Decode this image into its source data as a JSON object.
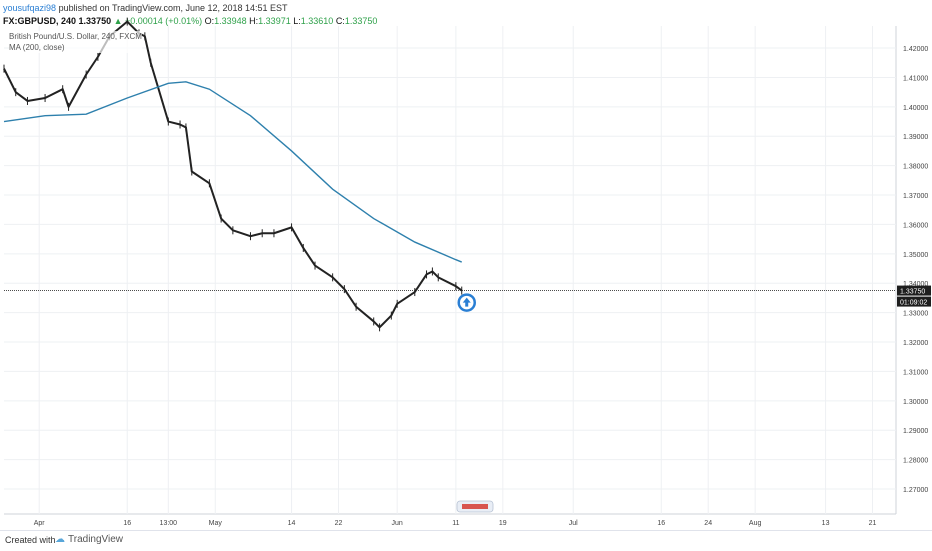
{
  "header": {
    "author": "yousufqazi98",
    "published_text": "published on TradingView.com, June 12, 2018 14:51 EST",
    "symbol": "FX:GBPUSD, 240",
    "last": "1.33750",
    "change": "▲ +0.00014 (+0.01%)",
    "o_label": "O:",
    "o_val": "1.33948",
    "h_label": "H:",
    "h_val": "1.33971",
    "l_label": "L:",
    "l_val": "1.33610",
    "c_label": "C:",
    "c_val": "1.33750"
  },
  "legend": {
    "instrument": "British Pound/U.S. Dollar, 240, FXCM",
    "ma": "MA (200, close)"
  },
  "price_tag": {
    "price": "1.33750",
    "countdown": "01:09:02"
  },
  "footer": {
    "created": "Created with",
    "brand": "TradingView"
  },
  "colors": {
    "ma_line": "#2e80ad",
    "candle": "#222222",
    "grid": "#eef0f3",
    "price_line": "#333333",
    "arrow": "#2a7fd4"
  },
  "chart_data": {
    "type": "line",
    "title": "British Pound/U.S. Dollar, 240, FXCM",
    "xlabel": "",
    "ylabel": "",
    "ylim": [
      1.2615,
      1.4275
    ],
    "y_ticks": [
      "1.42000",
      "1.41000",
      "1.40000",
      "1.39000",
      "1.38000",
      "1.37000",
      "1.36000",
      "1.35000",
      "1.34000",
      "1.33000",
      "1.32000",
      "1.31000",
      "1.30000",
      "1.29000",
      "1.28000",
      "1.27000"
    ],
    "x_ticks": [
      "Apr",
      "16",
      "13:00",
      "May",
      "14",
      "22",
      "Jun",
      "11",
      "19",
      "Jul",
      "16",
      "24",
      "Aug",
      "13",
      "21"
    ],
    "series": [
      {
        "name": "GBPUSD",
        "points": [
          [
            "Mar 26",
            1.413
          ],
          [
            "Mar 28",
            1.405
          ],
          [
            "Mar 30",
            1.402
          ],
          [
            "Apr 2",
            1.403
          ],
          [
            "Apr 5",
            1.406
          ],
          [
            "Apr 6",
            1.4
          ],
          [
            "Apr 9",
            1.411
          ],
          [
            "Apr 11",
            1.417
          ],
          [
            "Apr 13",
            1.424
          ],
          [
            "Apr 16",
            1.429
          ],
          [
            "Apr 18",
            1.425
          ],
          [
            "Apr 19",
            1.424
          ],
          [
            "Apr 20",
            1.415
          ],
          [
            "Apr 23",
            1.395
          ],
          [
            "Apr 25",
            1.394
          ],
          [
            "Apr 26",
            1.393
          ],
          [
            "Apr 27",
            1.378
          ],
          [
            "Apr 30",
            1.374
          ],
          [
            "May 2",
            1.362
          ],
          [
            "May 4",
            1.358
          ],
          [
            "May 7",
            1.356
          ],
          [
            "May 9",
            1.357
          ],
          [
            "May 11",
            1.357
          ],
          [
            "May 14",
            1.359
          ],
          [
            "May 16",
            1.352
          ],
          [
            "May 18",
            1.346
          ],
          [
            "May 21",
            1.342
          ],
          [
            "May 23",
            1.338
          ],
          [
            "May 25",
            1.332
          ],
          [
            "May 28",
            1.327
          ],
          [
            "May 29",
            1.325
          ],
          [
            "May 31",
            1.329
          ],
          [
            "Jun 1",
            1.333
          ],
          [
            "Jun 4",
            1.337
          ],
          [
            "Jun 6",
            1.343
          ],
          [
            "Jun 7",
            1.344
          ],
          [
            "Jun 8",
            1.342
          ],
          [
            "Jun 11",
            1.339
          ],
          [
            "Jun 12",
            1.3375
          ]
        ]
      },
      {
        "name": "MA (200, close)",
        "points": [
          [
            "Mar 26",
            1.395
          ],
          [
            "Apr 2",
            1.397
          ],
          [
            "Apr 9",
            1.3975
          ],
          [
            "Apr 16",
            1.403
          ],
          [
            "Apr 23",
            1.408
          ],
          [
            "Apr 26",
            1.4085
          ],
          [
            "Apr 30",
            1.406
          ],
          [
            "May 7",
            1.397
          ],
          [
            "May 14",
            1.385
          ],
          [
            "May 21",
            1.372
          ],
          [
            "May 28",
            1.362
          ],
          [
            "Jun 4",
            1.354
          ],
          [
            "Jun 11",
            1.348
          ],
          [
            "Jun 12",
            1.3472
          ]
        ]
      }
    ],
    "annotations": [
      "up-arrow marker at Jun 12"
    ]
  }
}
